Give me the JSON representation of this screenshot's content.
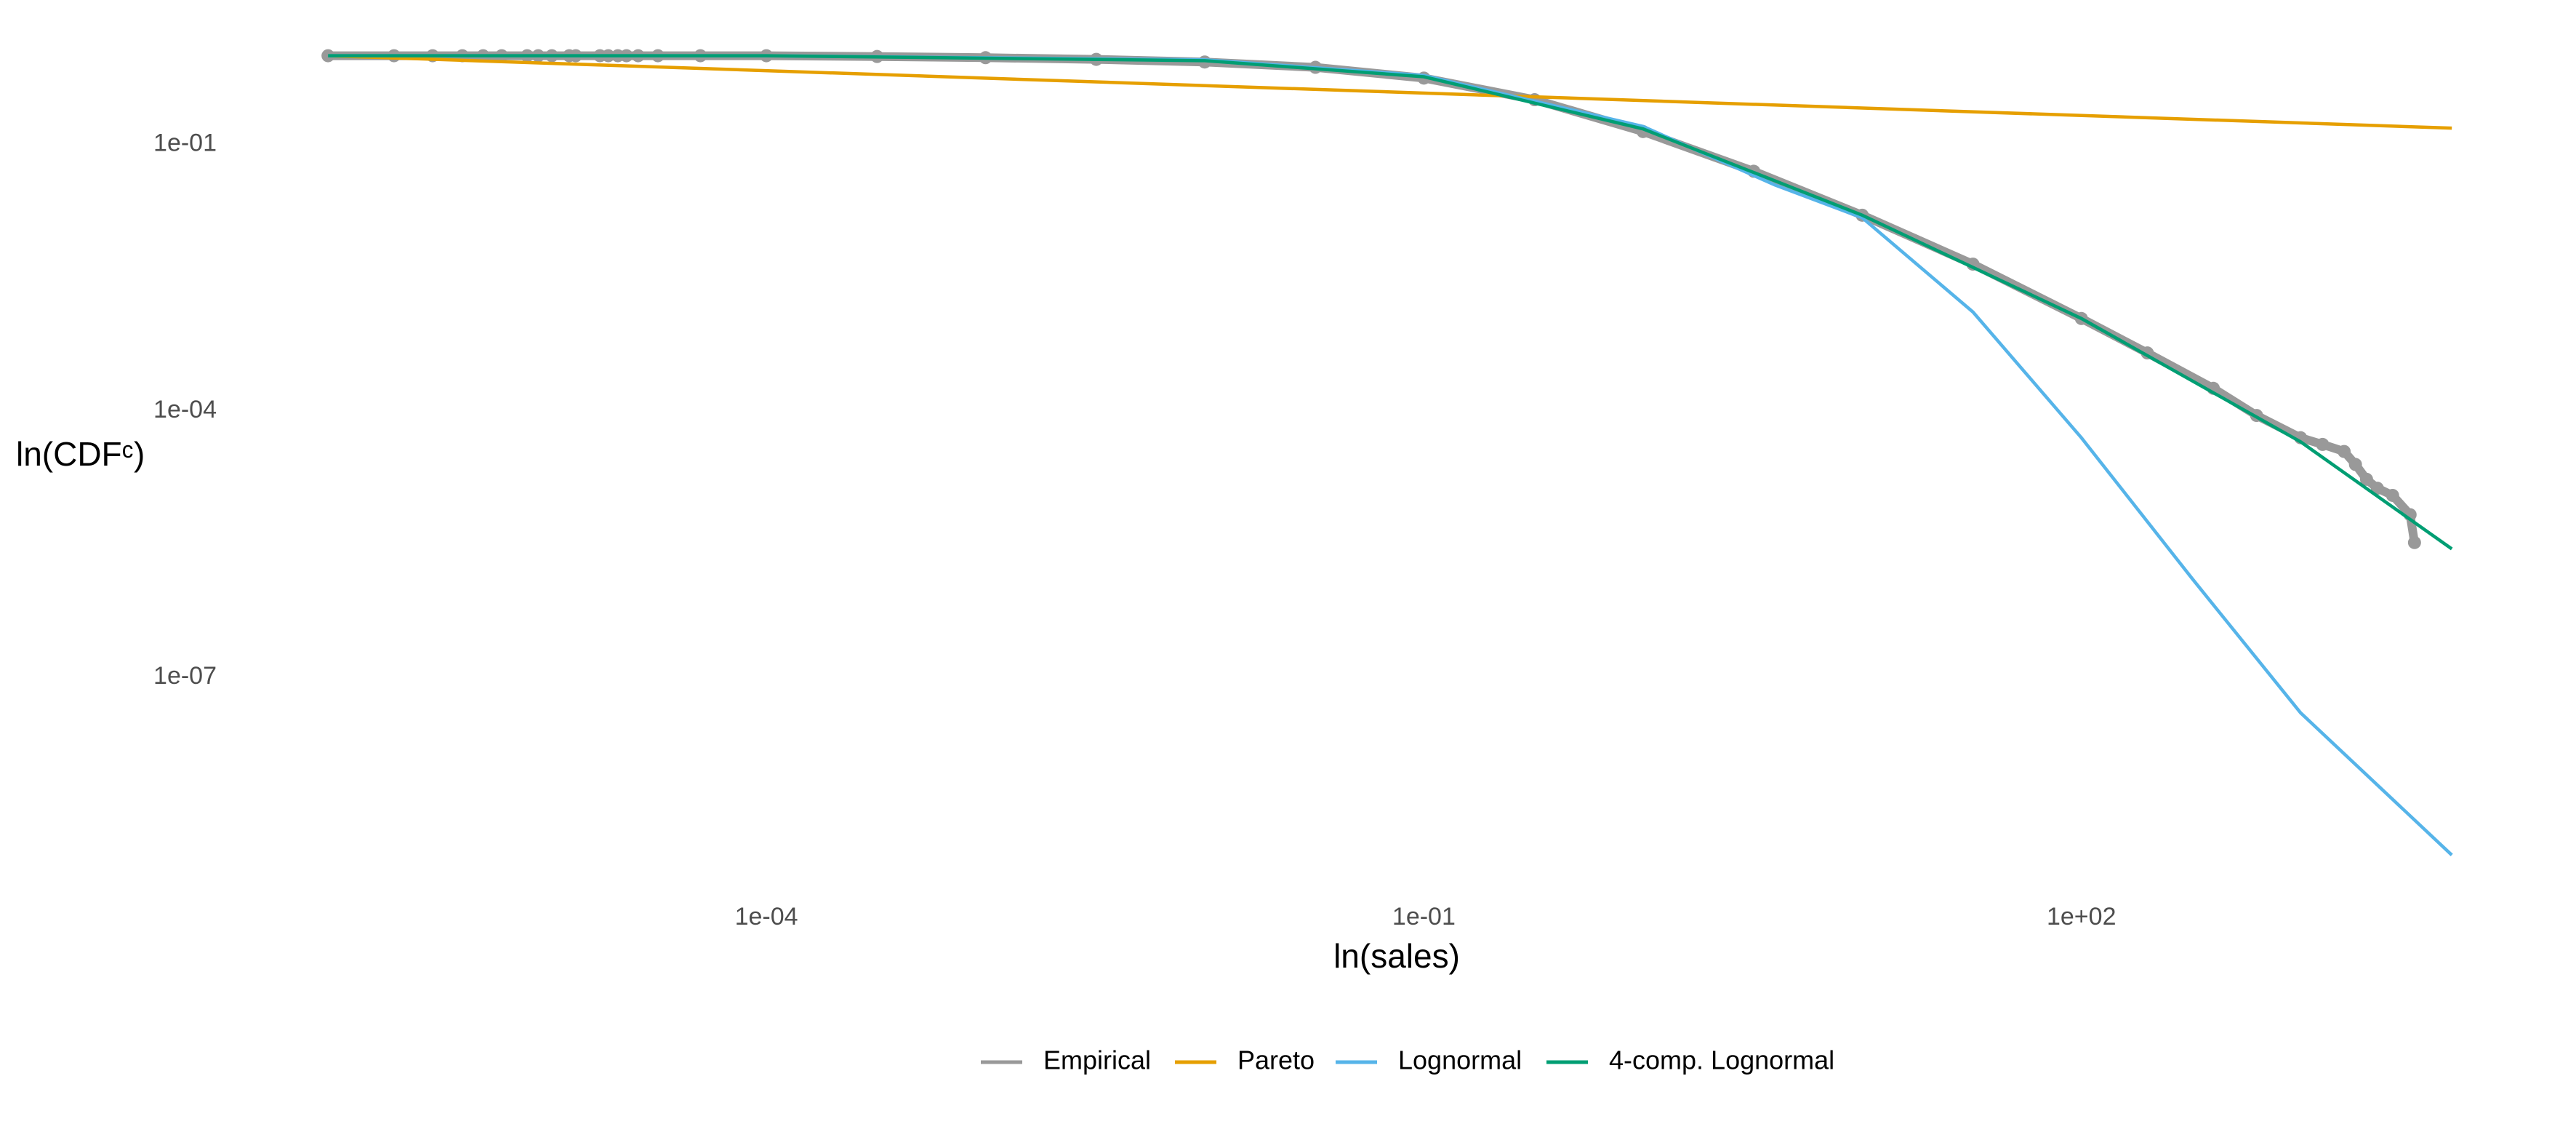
{
  "chart_data": {
    "type": "line",
    "x_label": "ln(sales)",
    "y_label": "ln(CDFᶜ)",
    "x_scale": "log",
    "y_scale": "log",
    "grid": false,
    "legend_position": "bottom",
    "xlim": [
      3.2e-07,
      15500
    ],
    "ylim": [
      3.5e-10,
      2.8
    ],
    "xticks": [
      {
        "value": 0.0001,
        "label": "1e-04"
      },
      {
        "value": 0.1,
        "label": "1e-01"
      },
      {
        "value": 100,
        "label": "1e+02"
      }
    ],
    "yticks": [
      {
        "value": 0.1,
        "label": "1e-01"
      },
      {
        "value": 0.0001,
        "label": "1e-04"
      },
      {
        "value": 1e-07,
        "label": "1e-07"
      }
    ],
    "series": [
      {
        "name": "Empirical",
        "color": "#999999",
        "style": "points",
        "x": [
          1e-06,
          2e-06,
          3e-06,
          4.1e-06,
          5.1e-06,
          6.2e-06,
          8.1e-06,
          9.1e-06,
          1.05e-05,
          1.26e-05,
          1.35e-05,
          1.74e-05,
          1.9e-05,
          2.1e-05,
          2.3e-05,
          2.6e-05,
          3.2e-05,
          5e-05,
          0.0001,
          0.00032,
          0.001,
          0.0032,
          0.01,
          0.032,
          0.1,
          0.32,
          1,
          3.2,
          10,
          32,
          100,
          200,
          400,
          630,
          1000,
          1260,
          1580,
          1780,
          2000,
          2240,
          2630,
          3160,
          3310
        ],
        "values": [
          1,
          1,
          1,
          1,
          1,
          1,
          1,
          1,
          1,
          1,
          1,
          1,
          1,
          1,
          1,
          1,
          1,
          1,
          1,
          0.98,
          0.95,
          0.91,
          0.85,
          0.74,
          0.56,
          0.32,
          0.14,
          0.05,
          0.016,
          0.0045,
          0.0011,
          0.00045,
          0.00018,
          8.9e-05,
          5e-05,
          4.2e-05,
          3.5e-05,
          2.5e-05,
          1.7e-05,
          1.35e-05,
          1.12e-05,
          6.8e-06,
          3.3e-06
        ]
      },
      {
        "name": "Pareto",
        "color": "#E69F00",
        "style": "line",
        "x": [
          1e-06,
          4900
        ],
        "values": [
          1,
          0.153
        ]
      },
      {
        "name": "Lognormal",
        "color": "#56B4E9",
        "style": "line",
        "x": [
          1e-06,
          0.0001,
          0.01,
          0.1,
          1,
          4,
          10,
          32,
          100,
          320,
          1000,
          4900
        ],
        "values": [
          1,
          1,
          0.9,
          0.6,
          0.16,
          0.035,
          0.015,
          0.0013,
          5e-05,
          1.3e-06,
          4e-08,
          1e-09
        ]
      },
      {
        "name": "4-comp. Lognormal",
        "color": "#009E73",
        "style": "line",
        "x": [
          1e-06,
          0.0001,
          0.01,
          0.1,
          1,
          10,
          100,
          1000,
          4900
        ],
        "values": [
          1,
          1,
          0.88,
          0.58,
          0.15,
          0.016,
          0.0011,
          4.5e-05,
          2.8e-06
        ]
      }
    ]
  }
}
